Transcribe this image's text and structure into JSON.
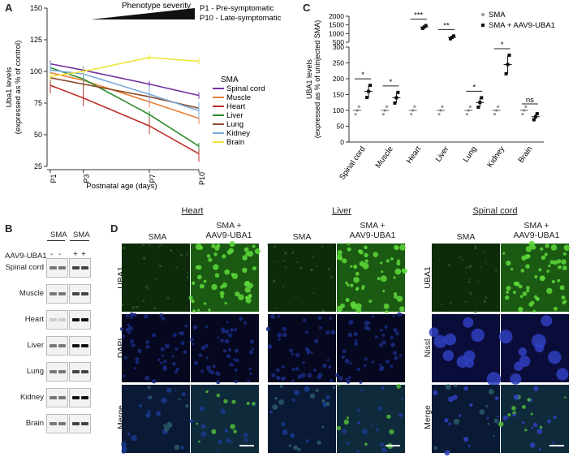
{
  "panels": {
    "a": "A",
    "b": "B",
    "c": "C",
    "d": "D"
  },
  "panelA": {
    "phenotype_label": "Phenotype severity",
    "legend_note_1": "P1   - Pre-symptomatic",
    "legend_note_2": "P10 - Late-symptomatic",
    "legend_title": "SMA"
  },
  "chart_data": [
    {
      "type": "line",
      "ylabel": "Uba1 levels (expressed as % of control)",
      "xlabel": "Postnatal age (days)",
      "x": [
        "P1",
        "P3",
        "P7",
        "P10"
      ],
      "x_pos": [
        1,
        3,
        7,
        10
      ],
      "ylim": [
        25,
        150
      ],
      "yticks": [
        25,
        50,
        75,
        100,
        125,
        150
      ],
      "series": [
        {
          "name": "Spinal cord",
          "color": "#7030a0",
          "values": [
            106,
            101,
            90,
            81
          ]
        },
        {
          "name": "Muscle",
          "color": "#e8813a",
          "values": [
            99,
            93,
            76,
            63
          ]
        },
        {
          "name": "Heart",
          "color": "#c0302a",
          "values": [
            89,
            79,
            57,
            35
          ]
        },
        {
          "name": "Liver",
          "color": "#2e8b2e",
          "values": [
            103,
            94,
            66,
            41
          ]
        },
        {
          "name": "Lung",
          "color": "#8a4b2a",
          "values": [
            95,
            90,
            80,
            71
          ]
        },
        {
          "name": "Kidney",
          "color": "#7aa7d9",
          "values": [
            101,
            98,
            82,
            69
          ]
        },
        {
          "name": "Brain",
          "color": "#f0e53a",
          "values": [
            96,
            100,
            111,
            108
          ]
        }
      ]
    },
    {
      "type": "scatter",
      "ylabel": "UBA1 levels (expressed as % of uninjected SMA)",
      "categories": [
        "Spinal cord",
        "Muscle",
        "Heart",
        "Liver",
        "Lung",
        "Kidney",
        "Brain"
      ],
      "yticks_low": [
        0,
        50,
        100,
        150,
        200,
        250,
        300
      ],
      "yticks_high": [
        500,
        1000,
        1500,
        2000
      ],
      "series": [
        {
          "name": "SMA",
          "marker": "circle",
          "color": "#999999",
          "means": [
            100,
            100,
            100,
            100,
            100,
            100,
            100
          ]
        },
        {
          "name": "SMA + AAV9-UBA1",
          "marker": "square",
          "color": "#111111",
          "means": [
            160,
            140,
            1380,
            780,
            125,
            245,
            80
          ]
        }
      ],
      "significance": [
        "*",
        "*",
        "***",
        "**",
        "*",
        "*",
        "ns"
      ],
      "legend_sma": "SMA",
      "legend_aav": "SMA + AAV9-UBA1"
    }
  ],
  "panelB": {
    "group_1": "SMA",
    "group_2": "SMA",
    "treatment_label": "AAV9-UBA1",
    "signs": [
      "-",
      "-",
      "+",
      "+"
    ],
    "tissues": [
      "Spinal cord",
      "Muscle",
      "Heart",
      "Liver",
      "Lung",
      "Kidney",
      "Brain"
    ]
  },
  "panelD": {
    "tissue_titles": [
      "Heart",
      "Liver",
      "Spinal cord"
    ],
    "col_sma": "SMA",
    "col_aav": "SMA +\nAAV9-UBA1",
    "rows_heart": [
      "UBA1",
      "DAPI",
      "Merge"
    ],
    "rows_cord": [
      "UBA1",
      "Nissl",
      "Merge"
    ]
  }
}
